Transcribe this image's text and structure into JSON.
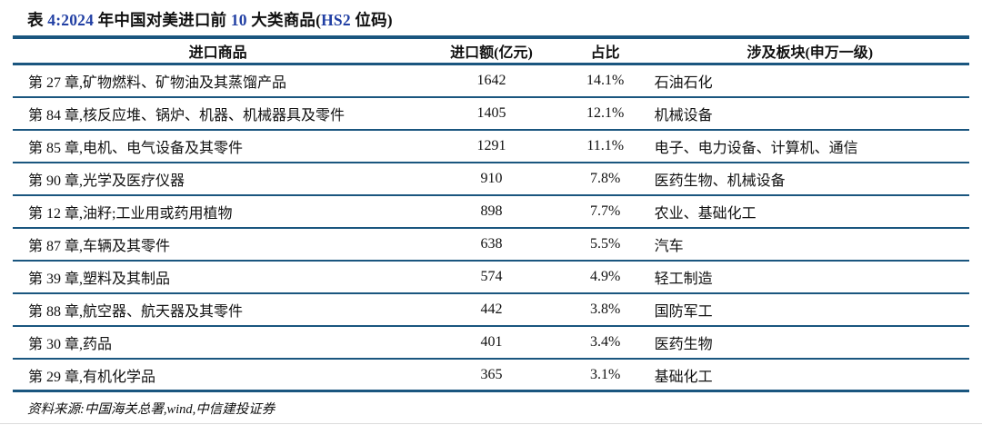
{
  "title": {
    "full": "表 4:2024 年中国对美进口前 10 大类商品(HS2 位码)",
    "segments": [
      {
        "text": "表 ",
        "highlight": false
      },
      {
        "text": "4:2024",
        "highlight": true
      },
      {
        "text": " 年中国对美进口前 ",
        "highlight": false
      },
      {
        "text": "10",
        "highlight": true
      },
      {
        "text": " 大类商品(",
        "highlight": false
      },
      {
        "text": "HS2",
        "highlight": true
      },
      {
        "text": " 位码)",
        "highlight": false
      }
    ]
  },
  "table": {
    "headers": [
      "进口商品",
      "进口额(亿元)",
      "占比",
      "涉及板块(申万一级)"
    ],
    "rows": [
      {
        "commodity": "第 27 章,矿物燃料、矿物油及其蒸馏产品",
        "amount": "1642",
        "share": "14.1%",
        "sectors": "石油石化"
      },
      {
        "commodity": "第 84 章,核反应堆、锅炉、机器、机械器具及零件",
        "amount": "1405",
        "share": "12.1%",
        "sectors": "机械设备"
      },
      {
        "commodity": "第 85 章,电机、电气设备及其零件",
        "amount": "1291",
        "share": "11.1%",
        "sectors": "电子、电力设备、计算机、通信"
      },
      {
        "commodity": "第 90 章,光学及医疗仪器",
        "amount": "910",
        "share": "7.8%",
        "sectors": "医药生物、机械设备"
      },
      {
        "commodity": "第 12 章,油籽;工业用或药用植物",
        "amount": "898",
        "share": "7.7%",
        "sectors": "农业、基础化工"
      },
      {
        "commodity": "第 87 章,车辆及其零件",
        "amount": "638",
        "share": "5.5%",
        "sectors": "汽车"
      },
      {
        "commodity": "第 39 章,塑料及其制品",
        "amount": "574",
        "share": "4.9%",
        "sectors": "轻工制造"
      },
      {
        "commodity": "第 88 章,航空器、航天器及其零件",
        "amount": "442",
        "share": "3.8%",
        "sectors": "国防军工"
      },
      {
        "commodity": "第 30 章,药品",
        "amount": "401",
        "share": "3.4%",
        "sectors": "医药生物"
      },
      {
        "commodity": "第 29 章,有机化学品",
        "amount": "365",
        "share": "3.1%",
        "sectors": "基础化工"
      }
    ]
  },
  "footer": {
    "source": "资料来源:中国海关总署,wind,中信建投证券"
  },
  "colors": {
    "line": "#1a567f",
    "number_blue": "#2240a4",
    "text": "#111111"
  }
}
